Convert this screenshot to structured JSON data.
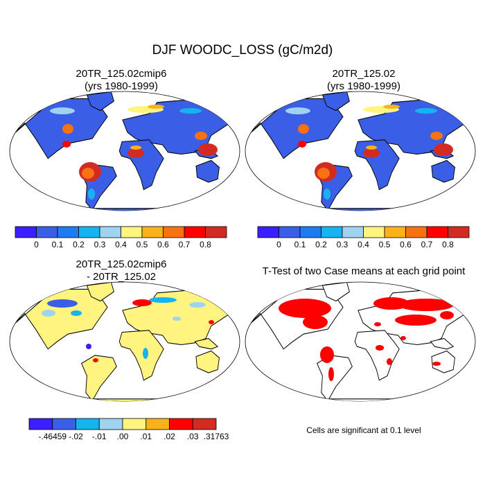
{
  "figure": {
    "title": "DJF WOODC_LOSS (gC/m2d)"
  },
  "panels": [
    {
      "title_line1": "20TR_125.02cmip6",
      "title_line2": "(yrs 1980-1999)"
    },
    {
      "title_line1": "20TR_125.02",
      "title_line2": "(yrs 1980-1999)"
    },
    {
      "title_line1": "20TR_125.02cmip6",
      "title_line2": "- 20TR_125.02"
    },
    {
      "title_line1": "T-Test of two Case means at each grid point",
      "title_line2": ""
    }
  ],
  "ttest_note": "Cells are significant at 0.1 level",
  "colors": {
    "ocean": "#ffffff",
    "significant": "#ff0000",
    "outline": "#000000"
  },
  "chart_data": [
    {
      "type": "heatmap",
      "map": "global-robinson",
      "title": "20TR_125.02cmip6 (yrs 1980-1999)",
      "colorbar": {
        "ticks": [
          "0",
          "0.1",
          "0.2",
          "0.3",
          "0.4",
          "0.5",
          "0.6",
          "0.7",
          "0.8"
        ],
        "colors": [
          "#3b1fff",
          "#3b5ee6",
          "#1e7cf0",
          "#16b4ee",
          "#a0d3f0",
          "#fff480",
          "#f9b219",
          "#f87212",
          "#ff0000",
          "#d22b22"
        ]
      }
    },
    {
      "type": "heatmap",
      "map": "global-robinson",
      "title": "20TR_125.02 (yrs 1980-1999)",
      "colorbar": {
        "ticks": [
          "0",
          "0.1",
          "0.2",
          "0.3",
          "0.4",
          "0.5",
          "0.6",
          "0.7",
          "0.8"
        ],
        "colors": [
          "#3b1fff",
          "#3b5ee6",
          "#1e7cf0",
          "#16b4ee",
          "#a0d3f0",
          "#fff480",
          "#f9b219",
          "#f87212",
          "#ff0000",
          "#d22b22"
        ]
      }
    },
    {
      "type": "heatmap",
      "map": "global-robinson",
      "title": "20TR_125.02cmip6 - 20TR_125.02",
      "colorbar": {
        "ticks": [
          "-.46459",
          "-.02",
          "-.01",
          ".00",
          ".01",
          ".02",
          ".03",
          ".31763"
        ],
        "colors": [
          "#3b1fff",
          "#3b5ee6",
          "#16b4ee",
          "#a0d3f0",
          "#fff480",
          "#f9b219",
          "#ff0000",
          "#d22b22"
        ]
      }
    },
    {
      "type": "heatmap",
      "map": "global-robinson",
      "title": "T-Test of two Case means at each grid point"
    }
  ]
}
